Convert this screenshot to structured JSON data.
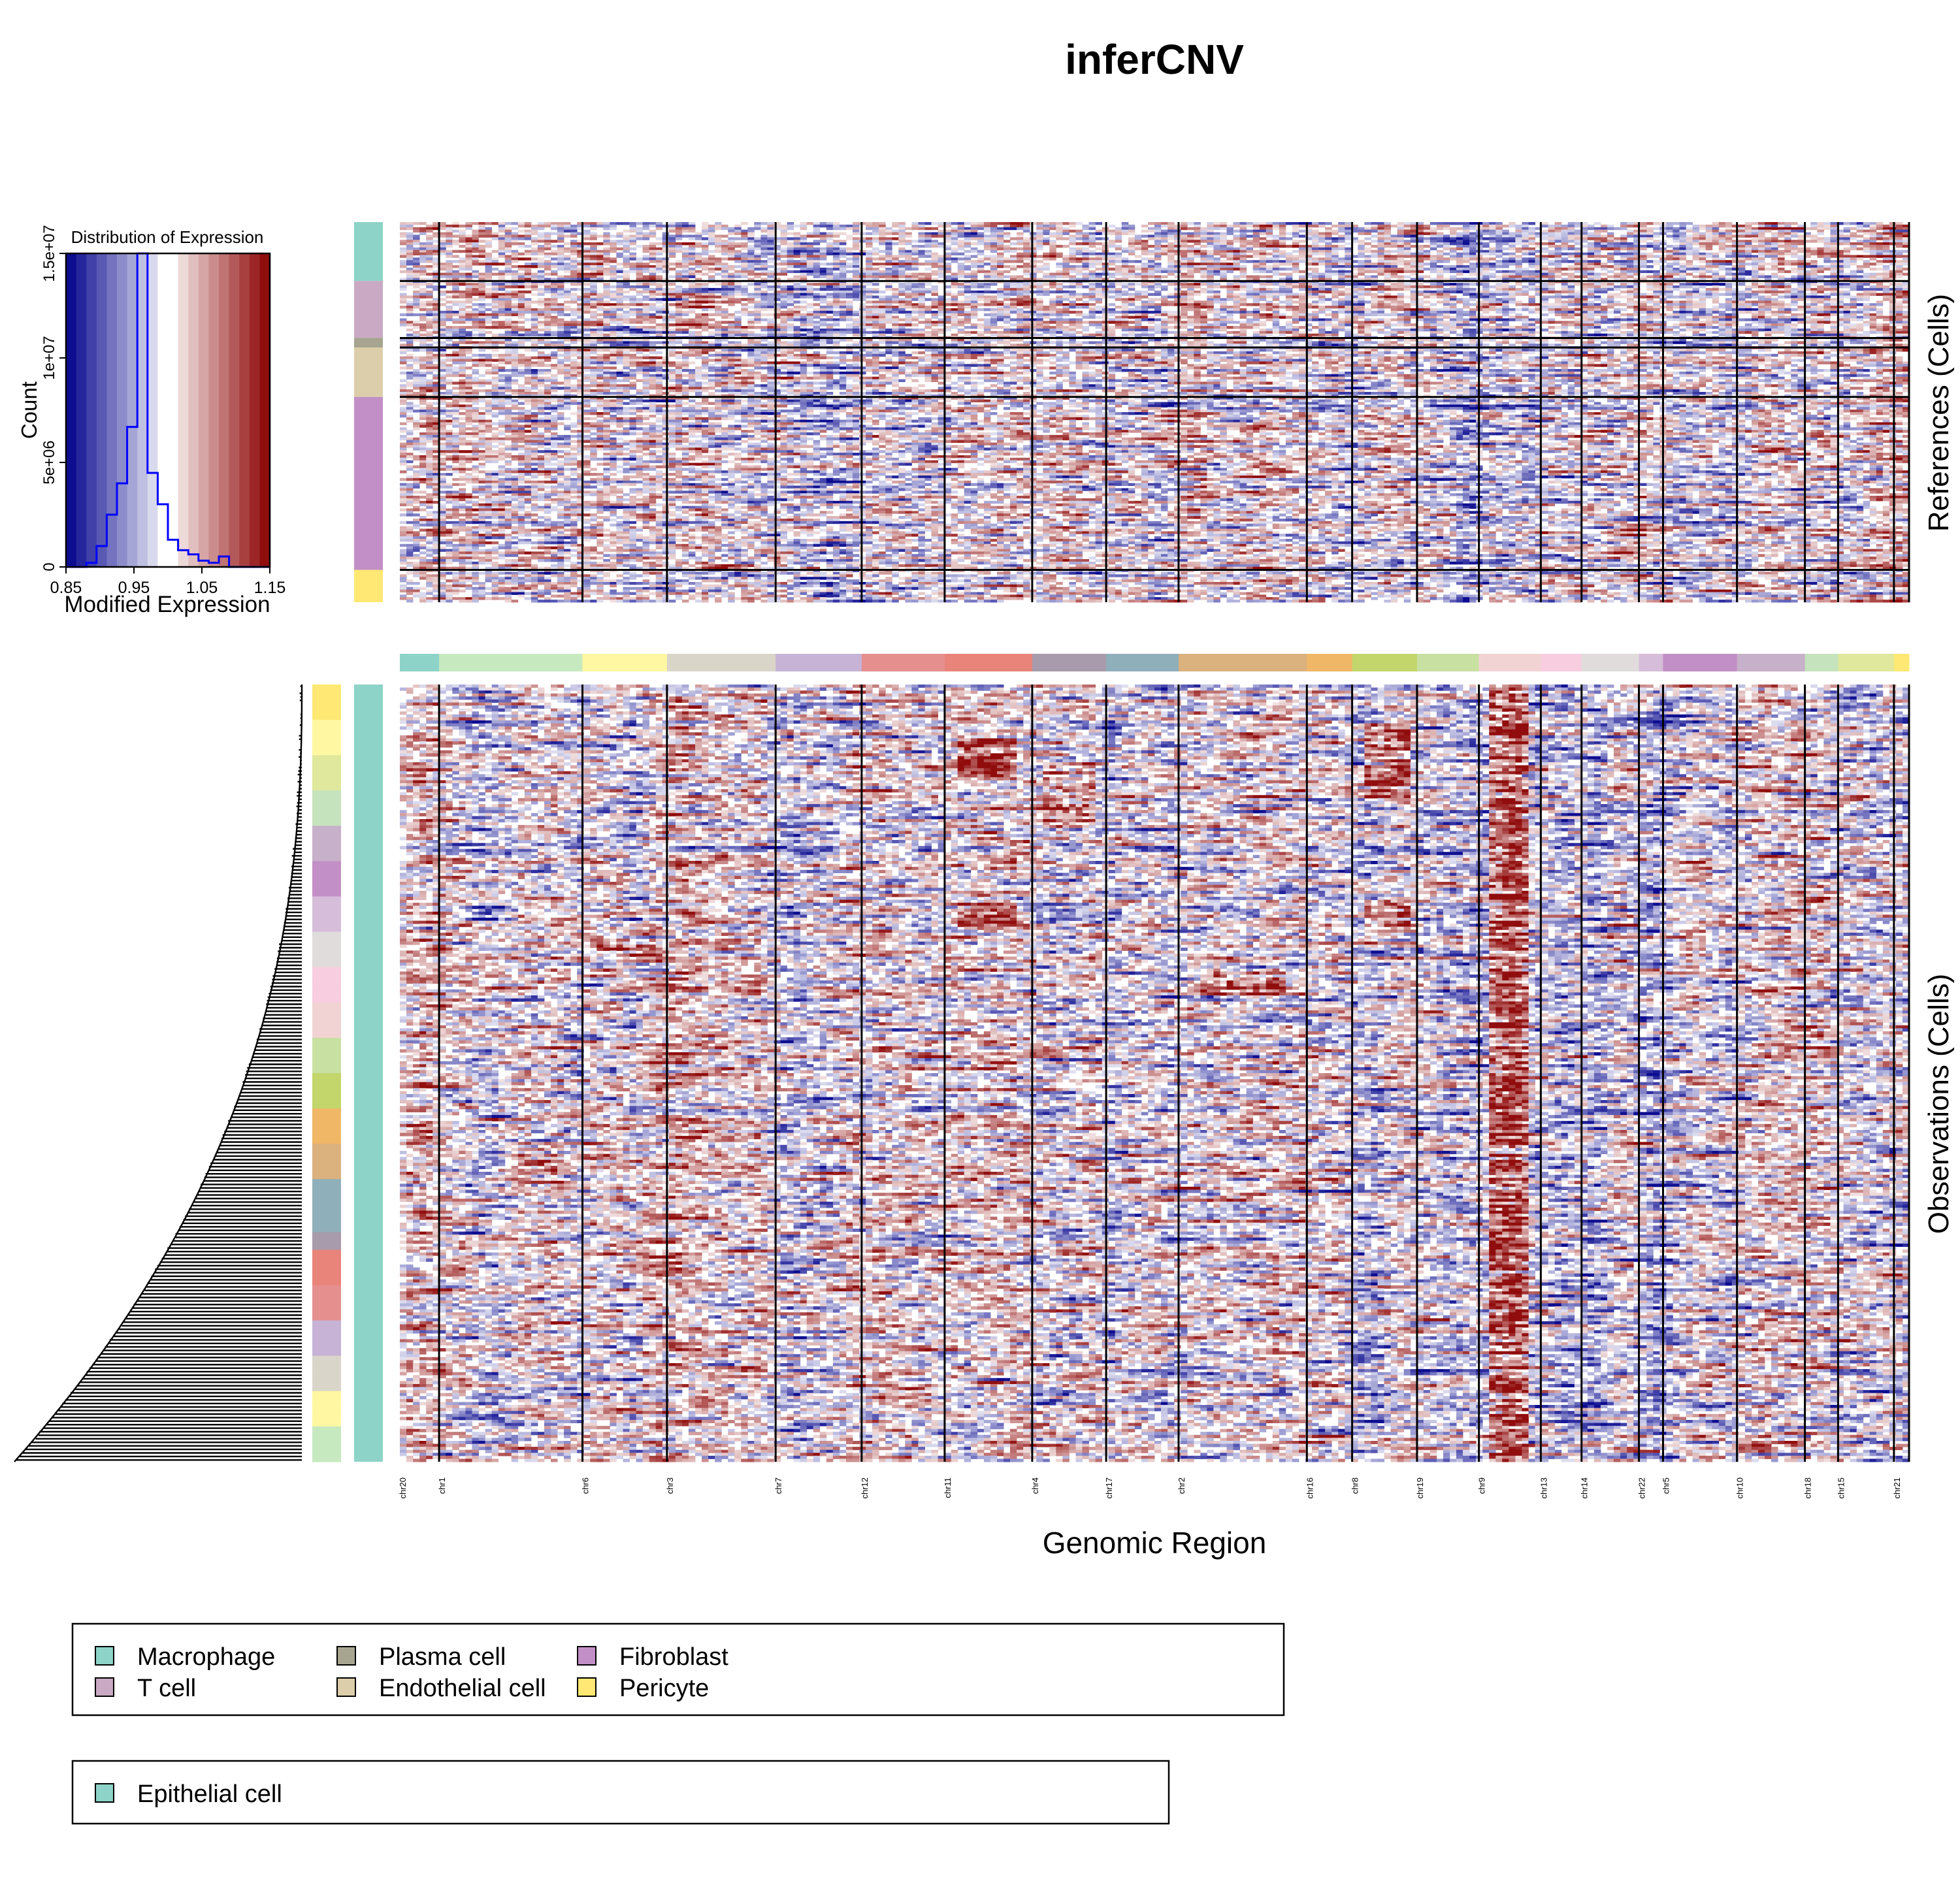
{
  "title": "inferCNV",
  "colors": {
    "low": "#00008b",
    "mid": "#ffffff",
    "high": "#8b0000",
    "hist_line": "#0000ff",
    "divider": "#000000"
  },
  "histogram": {
    "title": "Distribution of Expression",
    "xlabel": "Modified Expression",
    "ylabel": "Count",
    "x_ticks": [
      "0.85",
      "0.95",
      "1.05",
      "1.15"
    ],
    "y_ticks": [
      "0",
      "5e+06",
      "1e+07",
      "1.5e+07"
    ]
  },
  "chart_data": {
    "type": "heatmap",
    "title": "inferCNV",
    "xlabel": "Genomic Region",
    "reference_label": "References (Cells)",
    "observation_label": "Observations (Cells)",
    "chromosomes": [
      {
        "name": "chr20",
        "width": 0.026,
        "color": "#8dd3c7"
      },
      {
        "name": "chr1",
        "width": 0.095,
        "color": "#c7e9c0"
      },
      {
        "name": "chr6",
        "width": 0.056,
        "color": "#fff7a1"
      },
      {
        "name": "chr3",
        "width": 0.072,
        "color": "#d9d6c9"
      },
      {
        "name": "chr7",
        "width": 0.057,
        "color": "#c6b3d6"
      },
      {
        "name": "chr12",
        "width": 0.055,
        "color": "#e58f8f"
      },
      {
        "name": "chr11",
        "width": 0.058,
        "color": "#e8847a"
      },
      {
        "name": "chr4",
        "width": 0.049,
        "color": "#a89bab"
      },
      {
        "name": "chr17",
        "width": 0.048,
        "color": "#8fafbb"
      },
      {
        "name": "chr2",
        "width": 0.085,
        "color": "#dbb17e"
      },
      {
        "name": "chr16",
        "width": 0.03,
        "color": "#f0b766"
      },
      {
        "name": "chr8",
        "width": 0.043,
        "color": "#c2d66b"
      },
      {
        "name": "chr19",
        "width": 0.041,
        "color": "#c9e0a3"
      },
      {
        "name": "chr9",
        "width": 0.041,
        "color": "#f2d3d3"
      },
      {
        "name": "chr13",
        "width": 0.027,
        "color": "#f7cddf"
      },
      {
        "name": "chr14",
        "width": 0.038,
        "color": "#e0dcdc"
      },
      {
        "name": "chr22",
        "width": 0.016,
        "color": "#d6bdd9"
      },
      {
        "name": "chr5",
        "width": 0.049,
        "color": "#c28fc6"
      },
      {
        "name": "chr10",
        "width": 0.045,
        "color": "#c7b0c9"
      },
      {
        "name": "chr18",
        "width": 0.022,
        "color": "#c5e3bd"
      },
      {
        "name": "chr15",
        "width": 0.037,
        "color": "#dfe89c"
      },
      {
        "name": "chr21",
        "width": 0.01,
        "color": "#ffe873"
      }
    ],
    "reference_groups": [
      {
        "name": "Macrophage",
        "fraction": 0.155,
        "color": "#8dd3c7"
      },
      {
        "name": "T cell",
        "fraction": 0.15,
        "color": "#c9a9c3"
      },
      {
        "name": "Plasma cell",
        "fraction": 0.025,
        "color": "#a7a590"
      },
      {
        "name": "Endothelial cell",
        "fraction": 0.13,
        "color": "#dcceaa"
      },
      {
        "name": "Fibroblast",
        "fraction": 0.455,
        "color": "#c28fc6"
      },
      {
        "name": "Pericyte",
        "fraction": 0.085,
        "color": "#ffe873"
      }
    ],
    "observation_groups": [
      {
        "name": "Epithelial cell",
        "color": "#8dd3c7"
      }
    ],
    "histogram_bins": {
      "edges": [
        0.85,
        0.865,
        0.88,
        0.895,
        0.91,
        0.925,
        0.94,
        0.955,
        0.97,
        0.985,
        1.0,
        1.015,
        1.03,
        1.045,
        1.06,
        1.075,
        1.09,
        1.105,
        1.12,
        1.135,
        1.15
      ],
      "counts": [
        0,
        0,
        200000,
        1000000,
        2500000,
        4000000,
        6700000,
        15000000,
        4500000,
        3000000,
        1300000,
        800000,
        600000,
        300000,
        200000,
        500000,
        0,
        0,
        0,
        0
      ],
      "xlim": [
        0.85,
        1.15
      ],
      "ylim": [
        0,
        15000000
      ]
    },
    "hot_spots": [
      {
        "chr": "chr9",
        "band": [
          0.0,
          1.0
        ],
        "intensity": 0.9,
        "region": "observations"
      },
      {
        "chr": "chr8",
        "band": [
          0.05,
          0.15
        ],
        "intensity": 0.9,
        "region": "observations"
      },
      {
        "chr": "chr8",
        "band": [
          0.28,
          0.31
        ],
        "intensity": 0.9,
        "region": "observations"
      },
      {
        "chr": "chr11",
        "band": [
          0.07,
          0.12
        ],
        "intensity": 0.9,
        "region": "observations"
      },
      {
        "chr": "chr11",
        "band": [
          0.28,
          0.31
        ],
        "intensity": 0.9,
        "region": "observations"
      },
      {
        "chr": "chr2",
        "band": [
          0.37,
          0.4
        ],
        "intensity": 0.8,
        "region": "observations"
      },
      {
        "chr": "chr6",
        "band": [
          0.33,
          0.35
        ],
        "intensity": 0.7,
        "region": "observations"
      },
      {
        "chr": "chr4",
        "band": [
          0.1,
          0.18
        ],
        "intensity": 0.6,
        "region": "observations"
      }
    ]
  },
  "legend_references": [
    "Macrophage",
    "T cell",
    "Plasma cell",
    "Endothelial cell",
    "Fibroblast",
    "Pericyte"
  ],
  "legend_observations": [
    "Epithelial cell"
  ]
}
